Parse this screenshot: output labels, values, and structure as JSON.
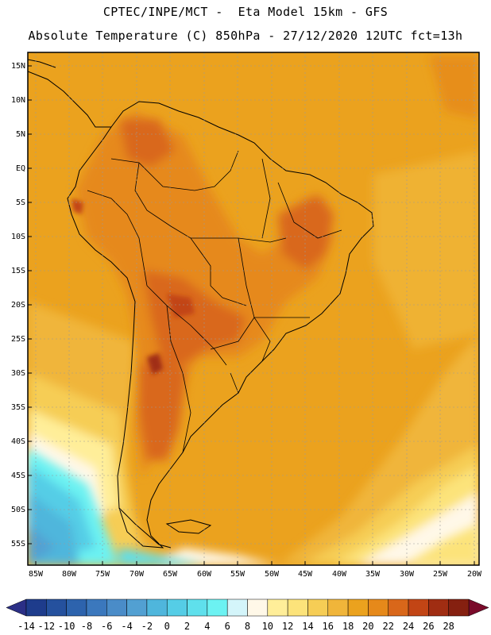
{
  "header": {
    "line1": "CPTEC/INPE/MCT -  Eta Model 15km - GFS",
    "line2": "Absolute Temperature (C) 850hPa - 27/12/2020 12UTC fct=13h"
  },
  "map": {
    "lat_labels": [
      "15N",
      "10N",
      "5N",
      "EQ",
      "5S",
      "10S",
      "15S",
      "20S",
      "25S",
      "30S",
      "35S",
      "40S",
      "45S",
      "50S",
      "55S"
    ],
    "lon_labels": [
      "85W",
      "80W",
      "75W",
      "70W",
      "65W",
      "60W",
      "55W",
      "50W",
      "45W",
      "40W",
      "35W",
      "30W",
      "25W",
      "20W"
    ]
  },
  "colorbar": {
    "labels": [
      "-14",
      "-12",
      "-10",
      "-8",
      "-6",
      "-4",
      "-2",
      "0",
      "2",
      "4",
      "6",
      "8",
      "10",
      "12",
      "14",
      "16",
      "18",
      "20",
      "22",
      "24",
      "26",
      "28"
    ],
    "colors": [
      "#1e3c8c",
      "#25519e",
      "#2d63ad",
      "#3b78bd",
      "#4a8cc8",
      "#52a0d2",
      "#4fb6dc",
      "#55cde6",
      "#5fe0ec",
      "#6cf2f2",
      "#d4f5fa",
      "#fff8e8",
      "#ffee99",
      "#fce37a",
      "#f6cd55",
      "#f0b53a",
      "#eba21e",
      "#e6891a",
      "#d9671a",
      "#c24515",
      "#a02d12",
      "#852010"
    ],
    "low_end": "#2b2f86",
    "high_end": "#7a0a2a"
  }
}
